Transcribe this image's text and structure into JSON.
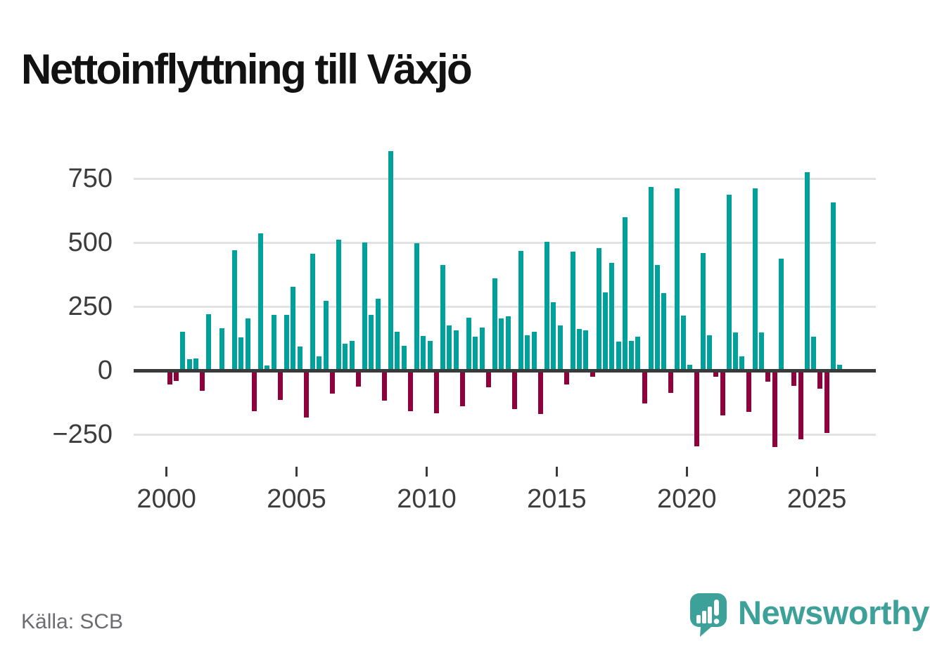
{
  "page": {
    "title": "Nettoinflyttning till Växjö",
    "source": "Källa: SCB"
  },
  "brand": {
    "name": "Newsworthy",
    "icon": "newsworthy-speech-bubble-barchart-icon",
    "color": "#3da19a"
  },
  "colors": {
    "positive": "#00a19a",
    "negative": "#8f013d",
    "axis_line": "#3a3a3a",
    "grid": "#e2e2e2",
    "tick_text": "#3c3c3c",
    "title_text": "#121212",
    "source_text": "#6c6c71"
  },
  "chart_data": {
    "type": "bar",
    "title": "Nettoinflyttning till Växjö",
    "frequency": "quarterly",
    "start_year": 2000,
    "periods_per_year": 4,
    "grid": true,
    "legend": false,
    "x_axis": {
      "tick_years": [
        2000,
        2005,
        2010,
        2015,
        2020,
        2025
      ],
      "tick_labels": [
        "2000",
        "2005",
        "2010",
        "2015",
        "2020",
        "2025"
      ]
    },
    "y_axis": {
      "tick_values": [
        750,
        500,
        250,
        0,
        -250
      ],
      "tick_labels": [
        "750",
        "500",
        "250",
        "0",
        "−250"
      ],
      "ylim": [
        -330,
        880
      ]
    },
    "series": [
      {
        "name": "Nettoinflyttning",
        "values": [
          -55,
          -40,
          151,
          44,
          48,
          -80,
          219,
          0,
          166,
          0,
          469,
          130,
          202,
          -160,
          535,
          18,
          217,
          -115,
          218,
          327,
          93,
          -185,
          457,
          55,
          272,
          -92,
          512,
          104,
          116,
          -64,
          501,
          216,
          280,
          -117,
          858,
          150,
          95,
          -160,
          496,
          134,
          115,
          -167,
          411,
          177,
          157,
          -140,
          205,
          131,
          168,
          -66,
          359,
          203,
          211,
          -151,
          466,
          136,
          152,
          -170,
          503,
          267,
          177,
          -55,
          464,
          163,
          157,
          -25,
          477,
          306,
          419,
          113,
          598,
          115,
          133,
          -130,
          717,
          411,
          301,
          -87,
          712,
          214,
          21,
          -296,
          460,
          136,
          -25,
          -176,
          687,
          147,
          56,
          -162,
          712,
          147,
          -43,
          -300,
          436,
          0,
          -60,
          -270,
          776,
          131,
          -71,
          -245,
          657,
          23
        ]
      }
    ]
  }
}
